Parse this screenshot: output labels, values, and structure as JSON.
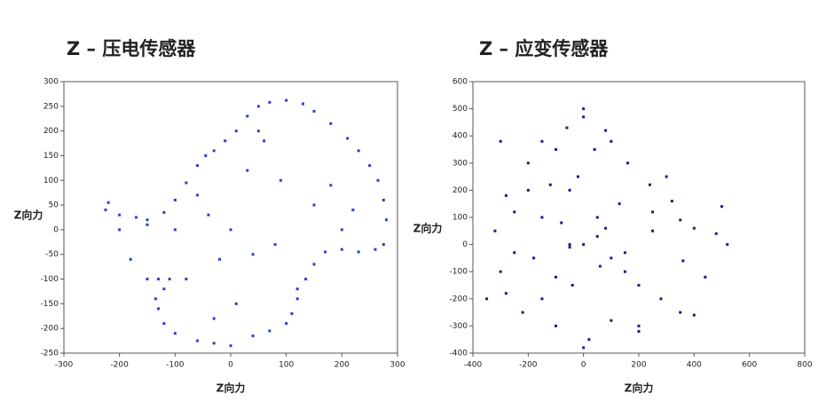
{
  "chart_data": [
    {
      "type": "scatter",
      "title": "Z – 压电传感器",
      "xlabel": "Z向力",
      "ylabel": "Z向力",
      "color": "#2a3fd0",
      "xlim": [
        -300,
        300
      ],
      "xticks": [
        -300,
        -200,
        -100,
        0,
        100,
        200,
        300
      ],
      "ylim": [
        -250,
        300
      ],
      "yticks": [
        -250,
        -200,
        -150,
        -100,
        -50,
        0,
        50,
        100,
        150,
        200,
        250,
        300
      ],
      "x": [
        -225,
        -220,
        -200,
        -170,
        -150,
        -120,
        -100,
        -80,
        -60,
        -45,
        -30,
        -10,
        10,
        30,
        50,
        70,
        100,
        130,
        150,
        180,
        210,
        230,
        250,
        265,
        275,
        280,
        275,
        260,
        230,
        200,
        170,
        150,
        135,
        120,
        110,
        100,
        70,
        40,
        0,
        -30,
        -60,
        -100,
        -120,
        -130,
        -135,
        -120,
        -110,
        -130,
        -150,
        -180,
        -200,
        0,
        -40,
        40,
        90,
        -80,
        150,
        30,
        -100,
        200,
        10,
        60,
        -20,
        120,
        -60,
        180,
        -150,
        80,
        -30,
        50,
        220
      ],
      "values": [
        40,
        55,
        30,
        25,
        20,
        35,
        60,
        95,
        130,
        150,
        160,
        180,
        200,
        230,
        250,
        258,
        262,
        255,
        240,
        215,
        185,
        160,
        130,
        100,
        60,
        20,
        -30,
        -40,
        -45,
        -40,
        -45,
        -70,
        -100,
        -140,
        -170,
        -190,
        -205,
        -215,
        -235,
        -230,
        -225,
        -210,
        -190,
        -160,
        -140,
        -120,
        -100,
        -100,
        -100,
        -60,
        0,
        0,
        30,
        -50,
        100,
        -100,
        50,
        120,
        0,
        0,
        -150,
        180,
        -60,
        -120,
        70,
        90,
        10,
        -30,
        -180,
        200,
        40
      ]
    },
    {
      "type": "scatter",
      "title": "Z – 应变传感器",
      "xlabel": "Z向力",
      "ylabel": "Z向力",
      "color": "#1c1c85",
      "xlim": [
        -400,
        800
      ],
      "xticks": [
        -400,
        -200,
        0,
        200,
        400,
        600,
        800
      ],
      "ylim": [
        -400,
        600
      ],
      "yticks": [
        -400,
        -300,
        -200,
        -100,
        0,
        100,
        200,
        300,
        400,
        500,
        600
      ],
      "x": [
        -350,
        -320,
        -300,
        -280,
        -250,
        -220,
        -200,
        -180,
        -150,
        -120,
        -100,
        -80,
        -60,
        -40,
        -20,
        0,
        20,
        40,
        60,
        80,
        100,
        130,
        160,
        200,
        240,
        280,
        320,
        360,
        400,
        440,
        480,
        520,
        -200,
        -100,
        0,
        100,
        200,
        300,
        -150,
        -50,
        50,
        150,
        250,
        350,
        -250,
        -150,
        -50,
        50,
        150,
        250,
        350,
        -100,
        0,
        100,
        200,
        -280,
        400,
        0,
        -50,
        80,
        -300,
        500
      ],
      "values": [
        -200,
        50,
        -100,
        180,
        120,
        -250,
        300,
        -50,
        380,
        220,
        -300,
        80,
        430,
        -150,
        250,
        500,
        -350,
        350,
        -80,
        420,
        -280,
        150,
        300,
        -320,
        220,
        -200,
        160,
        -60,
        60,
        -120,
        40,
        0,
        200,
        350,
        -380,
        380,
        -300,
        250,
        -200,
        0,
        100,
        -100,
        50,
        -250,
        -30,
        100,
        200,
        30,
        -30,
        120,
        90,
        -120,
        0,
        -50,
        -150,
        -180,
        -260,
        470,
        -10,
        60,
        380,
        140
      ]
    }
  ]
}
